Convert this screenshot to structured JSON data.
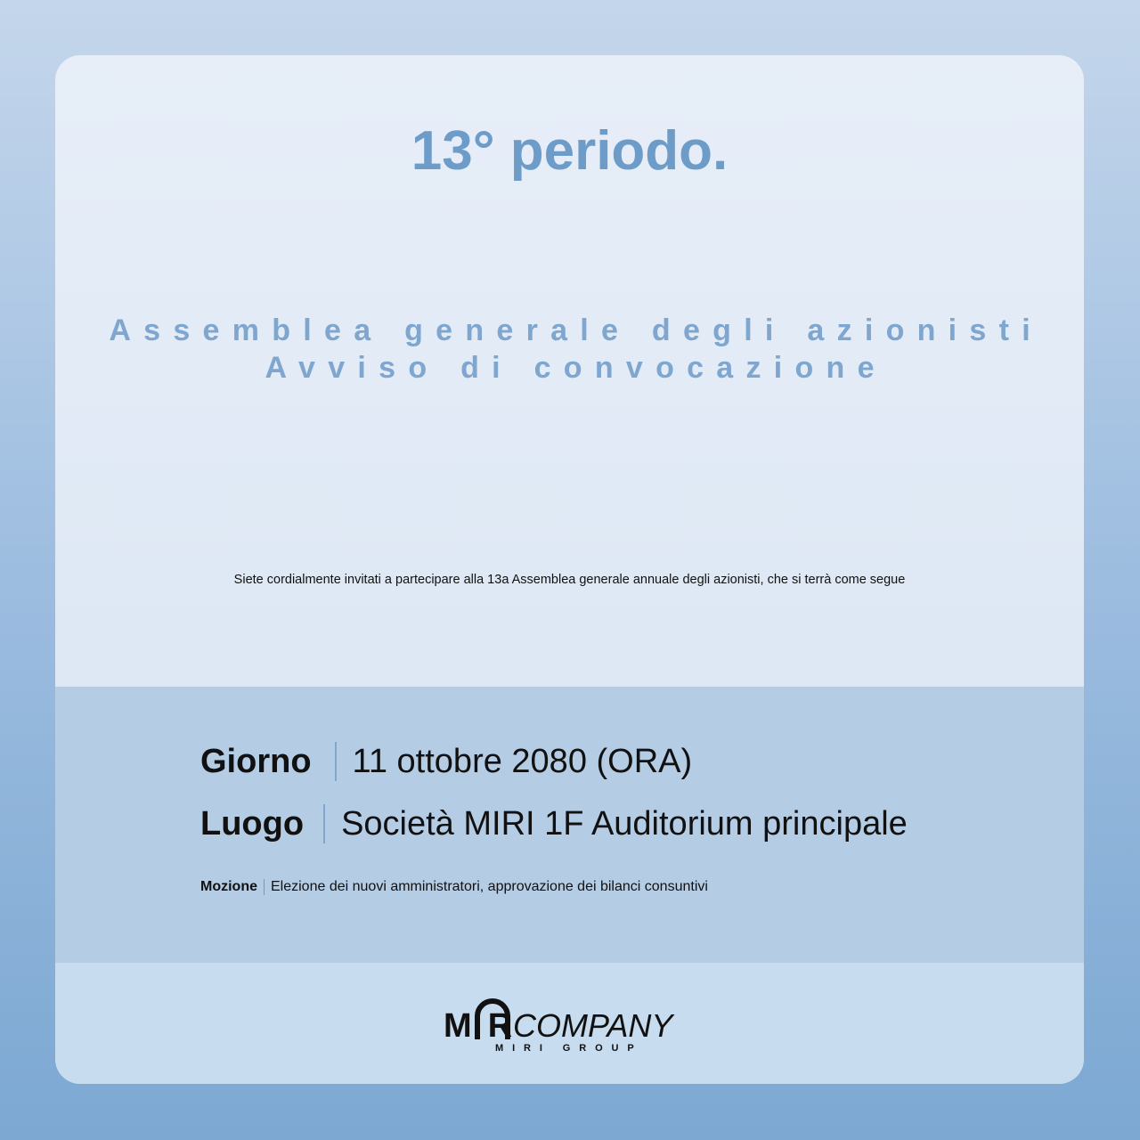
{
  "title": "13° periodo.",
  "subtitle": {
    "line1": "Assemblea generale degli azionisti",
    "line2": "Avviso di convocazione"
  },
  "invitation": "Siete cordialmente invitati a partecipare alla 13a Assemblea generale annuale degli azionisti, che si terrà come segue",
  "details": {
    "day": {
      "label": "Giorno",
      "value": "11 ottobre 2080 (ORA)"
    },
    "place": {
      "label": "Luogo",
      "value": "Società MIRI 1F Auditorium principale"
    },
    "motion": {
      "label": "Mozione",
      "value": "Elezione dei nuovi amministratori, approvazione dei bilanci consuntivi"
    }
  },
  "logo": {
    "mark": "MIRI",
    "name": "COMPANY",
    "group": "MIRI GROUP"
  },
  "colors": {
    "accent": "#6e9cc8",
    "band": "#b5cce5"
  }
}
